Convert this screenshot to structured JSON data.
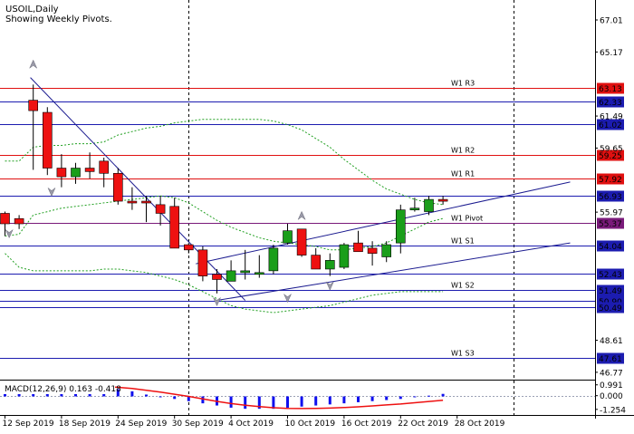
{
  "header": {
    "symbol": "USOIL,Daily",
    "subtitle": "Showing Weekly Pivots."
  },
  "colors": {
    "bull": "#1a9e1a",
    "bear": "#ee1111",
    "pivot_blue": "#1c1cb0",
    "pivot_red": "#e01010",
    "pivot_purple": "#7a1a7a",
    "envelope": "#22a022",
    "trend": "#1c1c90",
    "macd_hist": "#1010ee",
    "macd_signal": "#ee1111"
  },
  "chart_data": [
    {
      "type": "candlestick",
      "title": "USOIL,Daily",
      "subtitle": "Showing Weekly Pivots.",
      "ylim": [
        46.4,
        68.0
      ],
      "y_ticks": [
        "67.01",
        "65.17",
        "61.49",
        "59.65",
        "55.97",
        "48.61",
        "46.77"
      ],
      "x_ticks": [
        "12 Sep 2019",
        "18 Sep 2019",
        "24 Sep 2019",
        "30 Sep 2019",
        "4 Oct 2019",
        "10 Oct 2019",
        "16 Oct 2019",
        "22 Oct 2019",
        "28 Oct 2019"
      ],
      "candles": [
        {
          "o": 55.9,
          "c": 55.3,
          "h": 56.0,
          "l": 54.6
        },
        {
          "o": 55.6,
          "c": 55.3,
          "h": 55.8,
          "l": 55.0
        },
        {
          "o": 62.4,
          "c": 61.8,
          "h": 63.3,
          "l": 58.4
        },
        {
          "o": 61.7,
          "c": 58.5,
          "h": 62.0,
          "l": 58.1
        },
        {
          "o": 58.5,
          "c": 58.0,
          "h": 59.3,
          "l": 57.4
        },
        {
          "o": 58.0,
          "c": 58.5,
          "h": 58.8,
          "l": 57.6
        },
        {
          "o": 58.5,
          "c": 58.3,
          "h": 59.4,
          "l": 57.9
        },
        {
          "o": 58.9,
          "c": 58.2,
          "h": 59.1,
          "l": 57.4
        },
        {
          "o": 58.2,
          "c": 56.6,
          "h": 58.5,
          "l": 56.4
        },
        {
          "o": 56.6,
          "c": 56.5,
          "h": 57.4,
          "l": 56.1
        },
        {
          "o": 56.6,
          "c": 56.5,
          "h": 56.9,
          "l": 55.4
        },
        {
          "o": 56.4,
          "c": 55.9,
          "h": 56.9,
          "l": 55.2
        },
        {
          "o": 56.3,
          "c": 53.9,
          "h": 56.8,
          "l": 53.9
        },
        {
          "o": 54.1,
          "c": 53.8,
          "h": 54.2,
          "l": 53.6
        },
        {
          "o": 53.8,
          "c": 52.3,
          "h": 54.0,
          "l": 52.0
        },
        {
          "o": 52.4,
          "c": 52.1,
          "h": 52.7,
          "l": 51.3
        },
        {
          "o": 52.0,
          "c": 52.6,
          "h": 53.2,
          "l": 52.0
        },
        {
          "o": 52.5,
          "c": 52.6,
          "h": 53.8,
          "l": 52.1
        },
        {
          "o": 52.5,
          "c": 52.5,
          "h": 53.5,
          "l": 52.2
        },
        {
          "o": 52.6,
          "c": 53.9,
          "h": 54.1,
          "l": 52.4
        },
        {
          "o": 54.2,
          "c": 54.9,
          "h": 55.3,
          "l": 54.1
        },
        {
          "o": 55.0,
          "c": 53.5,
          "h": 55.0,
          "l": 53.4
        },
        {
          "o": 53.5,
          "c": 52.7,
          "h": 53.9,
          "l": 52.7
        },
        {
          "o": 52.7,
          "c": 53.2,
          "h": 53.6,
          "l": 52.3
        },
        {
          "o": 52.8,
          "c": 54.1,
          "h": 54.2,
          "l": 52.7
        },
        {
          "o": 54.2,
          "c": 53.7,
          "h": 54.9,
          "l": 53.7
        },
        {
          "o": 53.9,
          "c": 53.6,
          "h": 54.3,
          "l": 52.9
        },
        {
          "o": 53.4,
          "c": 54.1,
          "h": 54.3,
          "l": 53.1
        },
        {
          "o": 54.2,
          "c": 56.1,
          "h": 56.4,
          "l": 53.6
        },
        {
          "o": 56.1,
          "c": 56.2,
          "h": 56.8,
          "l": 56.0
        },
        {
          "o": 56.0,
          "c": 56.7,
          "h": 56.9,
          "l": 55.8
        },
        {
          "o": 56.7,
          "c": 56.6,
          "h": 56.9,
          "l": 56.4
        }
      ],
      "pivot_levels": [
        {
          "label": "W1 R3",
          "value": 63.13,
          "value_label": "63.13",
          "style": "red",
          "label_color": "red"
        },
        {
          "label": "",
          "value": 62.33,
          "value_label": "62.33",
          "style": "blue",
          "label_color": "blue"
        },
        {
          "label": "",
          "value": 61.02,
          "value_label": "61.02",
          "style": "blue",
          "label_color": "blue"
        },
        {
          "label": "W1 R2",
          "value": 59.25,
          "value_label": "59.25",
          "style": "red",
          "label_color": "red"
        },
        {
          "label": "W1 R1",
          "value": 57.92,
          "value_label": "57.92",
          "style": "red",
          "label_color": "red"
        },
        {
          "label": "",
          "value": 56.93,
          "value_label": "56.93",
          "style": "blue",
          "label_color": "white"
        },
        {
          "label": "W1 Pivot",
          "value": 55.37,
          "value_label": "55.37",
          "style": "purple",
          "label_color": "purple"
        },
        {
          "label": "W1 S1",
          "value": 54.04,
          "value_label": "54.04",
          "style": "blue",
          "label_color": "blue"
        },
        {
          "label": "",
          "value": 52.43,
          "value_label": "52.43",
          "style": "blue",
          "label_color": "white"
        },
        {
          "label": "W1 S2",
          "value": 51.49,
          "value_label": "51.49",
          "style": "blue",
          "label_color": "blue"
        },
        {
          "label": "",
          "value": 50.9,
          "value_label": "50.90",
          "style": "blue",
          "label_color": "white"
        },
        {
          "label": "",
          "value": 50.49,
          "value_label": "50.49",
          "style": "blue",
          "label_color": "white"
        },
        {
          "label": "W1 S3",
          "value": 47.61,
          "value_label": "47.61",
          "style": "blue",
          "label_color": "blue"
        }
      ],
      "envelope_upper": [
        58.9,
        58.9,
        59.7,
        59.8,
        59.8,
        59.9,
        59.9,
        60.0,
        60.4,
        60.6,
        60.8,
        60.9,
        61.1,
        61.2,
        61.3,
        61.3,
        61.3,
        61.3,
        61.3,
        61.2,
        61.0,
        60.7,
        60.2,
        59.7,
        59.0,
        58.4,
        57.8,
        57.3,
        57.0,
        56.7,
        56.5,
        56.4
      ],
      "envelope_middle": [
        54.6,
        54.7,
        55.8,
        56.0,
        56.2,
        56.3,
        56.4,
        56.5,
        56.6,
        56.7,
        56.8,
        56.9,
        56.8,
        56.5,
        56.0,
        55.5,
        55.1,
        54.8,
        54.5,
        54.3,
        54.2,
        54.1,
        54.0,
        53.8,
        53.8,
        53.9,
        54.0,
        54.2,
        54.6,
        55.0,
        55.4,
        55.6
      ],
      "envelope_lower": [
        53.6,
        52.8,
        52.6,
        52.6,
        52.6,
        52.6,
        52.6,
        52.7,
        52.7,
        52.6,
        52.5,
        52.3,
        52.1,
        51.8,
        51.4,
        51.0,
        50.6,
        50.4,
        50.3,
        50.2,
        50.3,
        50.4,
        50.5,
        50.6,
        50.8,
        51.0,
        51.2,
        51.3,
        51.4,
        51.4,
        51.4,
        51.4
      ],
      "trendlines": [
        {
          "x1": 1.8,
          "y1": 63.7,
          "x2": 17.0,
          "y2": 50.9
        },
        {
          "x1": 13.5,
          "y1": 53.0,
          "x2": 40.0,
          "y2": 57.7
        },
        {
          "x1": 15.0,
          "y1": 50.9,
          "x2": 40.0,
          "y2": 54.2
        }
      ],
      "fractals": [
        {
          "x": 2.0,
          "y": 64.5,
          "dir": "up"
        },
        {
          "x": 3.3,
          "y": 57.1,
          "dir": "down"
        },
        {
          "x": 0.3,
          "y": 54.7,
          "dir": "down"
        },
        {
          "x": 15.0,
          "y": 50.8,
          "dir": "down"
        },
        {
          "x": 20.0,
          "y": 51.0,
          "dir": "down"
        },
        {
          "x": 23.0,
          "y": 51.7,
          "dir": "down"
        },
        {
          "x": 21.0,
          "y": 55.8,
          "dir": "up"
        }
      ],
      "vlines": [
        13.0,
        36.0
      ]
    },
    {
      "type": "bar",
      "title": "MACD(12,26,9) 0.163 -0.418",
      "ylim": [
        -1.6,
        1.3
      ],
      "y_ticks": [
        "0.991",
        "0.000",
        "-1.254"
      ],
      "zero_line": 0.0,
      "histogram": [
        0.9,
        0.9,
        0.9,
        0.9,
        0.9,
        0.9,
        0.9,
        0.7,
        0.6,
        0.4,
        0.1,
        -0.1,
        -0.3,
        -0.5,
        -0.7,
        -0.9,
        -1.1,
        -1.2,
        -1.2,
        -1.2,
        -1.1,
        -1.0,
        -0.9,
        -0.8,
        -0.7,
        -0.6,
        -0.5,
        -0.4,
        -0.3,
        -0.1,
        0.0,
        0.163
      ],
      "signal": [
        0.9,
        0.92,
        0.95,
        0.95,
        0.94,
        0.93,
        0.91,
        0.85,
        0.76,
        0.65,
        0.5,
        0.32,
        0.13,
        -0.07,
        -0.3,
        -0.52,
        -0.72,
        -0.88,
        -1.0,
        -1.1,
        -1.16,
        -1.18,
        -1.17,
        -1.14,
        -1.09,
        -1.02,
        -0.94,
        -0.85,
        -0.76,
        -0.65,
        -0.53,
        -0.418
      ]
    }
  ]
}
